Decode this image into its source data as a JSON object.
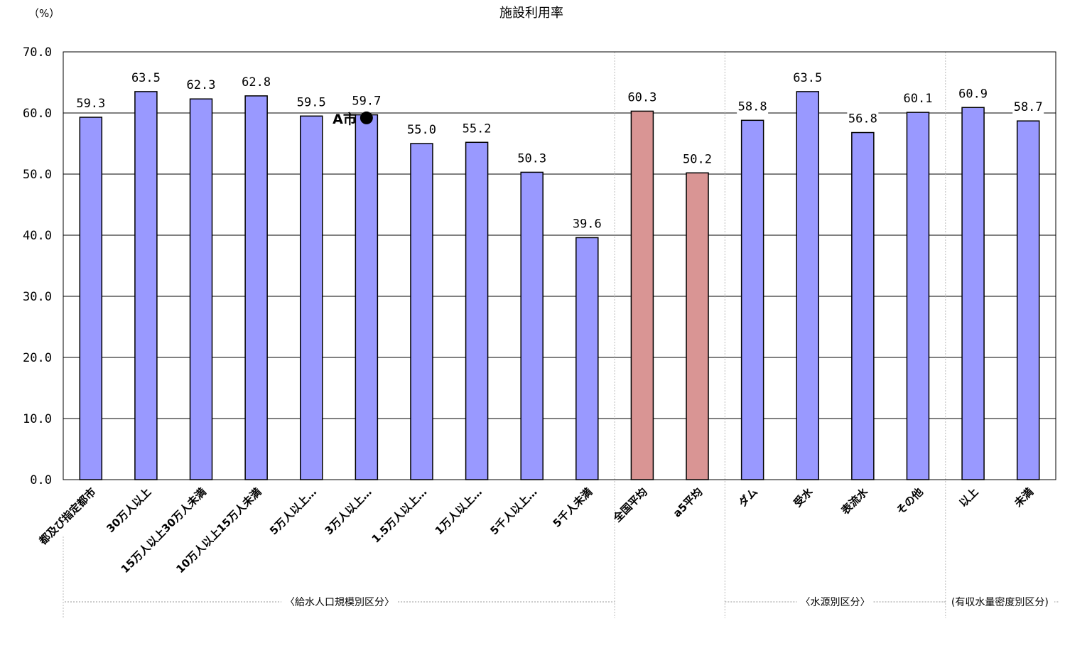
{
  "chart_data": {
    "type": "bar",
    "title": "施設利用率",
    "ylabel": "（%）",
    "ylim": [
      0,
      70
    ],
    "yticks": [
      "0.0",
      "10.0",
      "20.0",
      "30.0",
      "40.0",
      "50.0",
      "60.0",
      "70.0"
    ],
    "grid": true,
    "categories": [
      "都及び指定都市",
      "30万人以上",
      "15万人以上30万人未満",
      "10万人以上15万人未満",
      "5万人以上…",
      "3万人以上…",
      "1.5万人以上…",
      "1万人以上…",
      "5千人以上…",
      "5千人未満",
      "全国平均",
      "a5平均",
      "ダム",
      "受水",
      "表流水",
      "その他",
      "以上",
      "未満"
    ],
    "values": [
      59.3,
      63.5,
      62.3,
      62.8,
      59.5,
      59.7,
      55.0,
      55.2,
      50.3,
      39.6,
      60.3,
      50.2,
      58.8,
      63.5,
      56.8,
      60.1,
      60.9,
      58.7
    ],
    "value_labels": [
      "59.3",
      "63.5",
      "62.3",
      "62.8",
      "59.5",
      "59.7",
      "55.0",
      "55.2",
      "50.3",
      "39.6",
      "60.3",
      "50.2",
      "58.8",
      "63.5",
      "56.8",
      "60.1",
      "60.9",
      "58.7"
    ],
    "bar_colors": [
      "#9999ff",
      "#9999ff",
      "#9999ff",
      "#9999ff",
      "#9999ff",
      "#9999ff",
      "#9999ff",
      "#9999ff",
      "#9999ff",
      "#9999ff",
      "#d99594",
      "#d99594",
      "#9999ff",
      "#9999ff",
      "#9999ff",
      "#9999ff",
      "#9999ff",
      "#9999ff"
    ],
    "groups": [
      {
        "label": "〈給水人口規模別区分〉",
        "start": 0,
        "end": 9
      },
      {
        "label": "〈水源別区分〉",
        "start": 12,
        "end": 15
      },
      {
        "label": "(有収水量密度別区分)",
        "start": 16,
        "end": 17
      }
    ],
    "annotation": {
      "label": "A市",
      "category_index": 5,
      "value": 59.2
    }
  }
}
